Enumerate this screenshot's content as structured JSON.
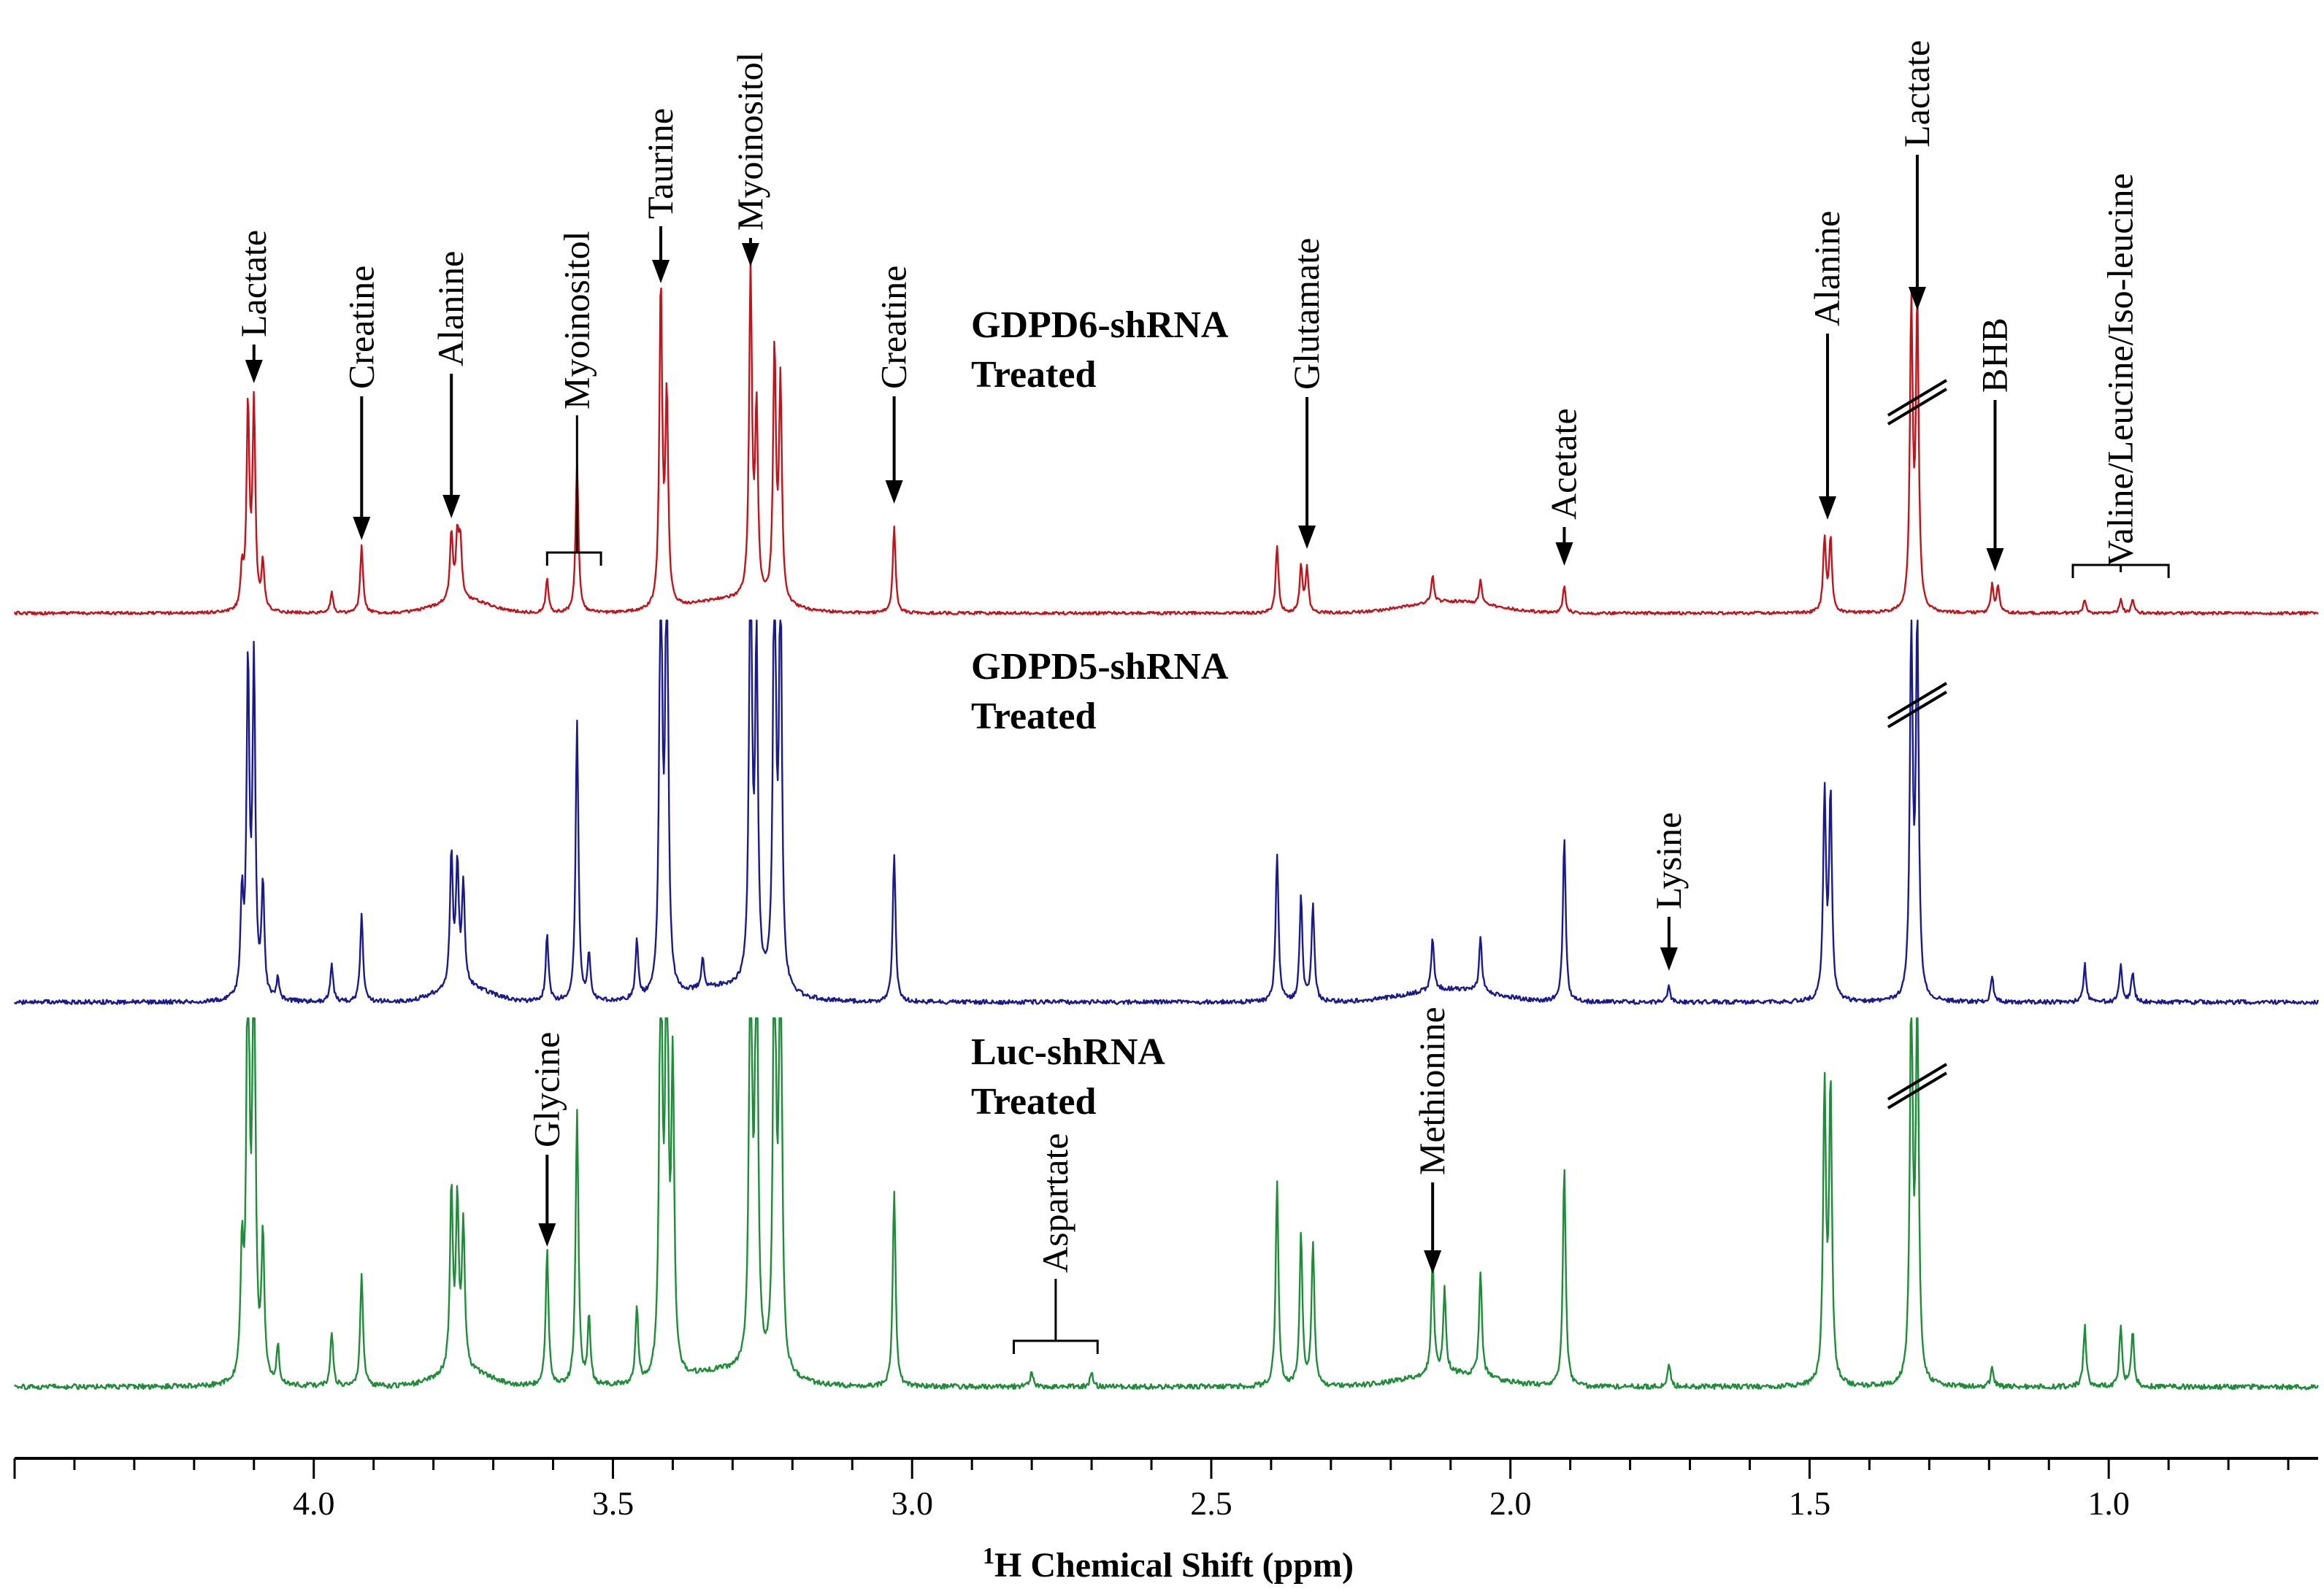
{
  "chart_data": {
    "type": "line",
    "title": "",
    "xlabel": "¹H Chemical Shift (ppm)",
    "xlabel_superscript": "1",
    "xlabel_text": "H Chemical Shift (ppm)",
    "ylabel": "",
    "x_reversed": true,
    "xlim": [
      4.5,
      0.65
    ],
    "x_ticks": [
      4.0,
      3.5,
      3.0,
      2.5,
      2.0,
      1.5,
      1.0
    ],
    "x_tick_labels": [
      "4.0",
      "3.5",
      "3.0",
      "2.5",
      "2.0",
      "1.5",
      "1.0"
    ],
    "series": [
      {
        "name": "GDPD6-shRNA",
        "label_line1": "GDPD6-shRNA",
        "label_line2": "Treated",
        "color": "#c0141c",
        "baseline": 0.0,
        "peaks": [
          {
            "ppm": 4.11,
            "height": 0.6
          },
          {
            "ppm": 4.1,
            "height": 0.61
          },
          {
            "ppm": 4.085,
            "height": 0.14
          },
          {
            "ppm": 4.12,
            "height": 0.12
          },
          {
            "ppm": 3.92,
            "height": 0.2
          },
          {
            "ppm": 3.97,
            "height": 0.06
          },
          {
            "ppm": 3.77,
            "height": 0.2
          },
          {
            "ppm": 3.76,
            "height": 0.18
          },
          {
            "ppm": 3.755,
            "height": 0.16
          },
          {
            "ppm": 3.56,
            "height": 0.45
          },
          {
            "ppm": 3.61,
            "height": 0.1
          },
          {
            "ppm": 3.42,
            "height": 0.96
          },
          {
            "ppm": 3.41,
            "height": 0.62
          },
          {
            "ppm": 3.27,
            "height": 0.98
          },
          {
            "ppm": 3.26,
            "height": 0.55
          },
          {
            "ppm": 3.23,
            "height": 0.75
          },
          {
            "ppm": 3.22,
            "height": 0.65
          },
          {
            "ppm": 3.03,
            "height": 0.26
          },
          {
            "ppm": 2.39,
            "height": 0.2
          },
          {
            "ppm": 2.35,
            "height": 0.14
          },
          {
            "ppm": 2.34,
            "height": 0.13
          },
          {
            "ppm": 2.13,
            "height": 0.08
          },
          {
            "ppm": 2.05,
            "height": 0.07
          },
          {
            "ppm": 1.91,
            "height": 0.08
          },
          {
            "ppm": 1.475,
            "height": 0.22
          },
          {
            "ppm": 1.465,
            "height": 0.22
          },
          {
            "ppm": 1.33,
            "height": 0.9
          },
          {
            "ppm": 1.32,
            "height": 0.9
          },
          {
            "ppm": 1.195,
            "height": 0.08
          },
          {
            "ppm": 1.185,
            "height": 0.08
          },
          {
            "ppm": 1.04,
            "height": 0.04
          },
          {
            "ppm": 0.98,
            "height": 0.04
          },
          {
            "ppm": 0.96,
            "height": 0.04
          }
        ]
      },
      {
        "name": "GDPD5-shRNA",
        "label_line1": "GDPD5-shRNA",
        "label_line2": "Treated",
        "color": "#1a1a8c",
        "baseline": 0.0,
        "peaks": [
          {
            "ppm": 4.11,
            "height": 0.88
          },
          {
            "ppm": 4.1,
            "height": 0.89
          },
          {
            "ppm": 4.085,
            "height": 0.3
          },
          {
            "ppm": 4.12,
            "height": 0.26
          },
          {
            "ppm": 4.06,
            "height": 0.06
          },
          {
            "ppm": 3.97,
            "height": 0.1
          },
          {
            "ppm": 3.92,
            "height": 0.24
          },
          {
            "ppm": 3.77,
            "height": 0.36
          },
          {
            "ppm": 3.76,
            "height": 0.32
          },
          {
            "ppm": 3.75,
            "height": 0.27
          },
          {
            "ppm": 3.61,
            "height": 0.18
          },
          {
            "ppm": 3.56,
            "height": 0.75
          },
          {
            "ppm": 3.54,
            "height": 0.12
          },
          {
            "ppm": 3.46,
            "height": 0.16
          },
          {
            "ppm": 3.42,
            "height": 1.25
          },
          {
            "ppm": 3.41,
            "height": 1.25
          },
          {
            "ppm": 3.35,
            "height": 0.08
          },
          {
            "ppm": 3.27,
            "height": 1.25
          },
          {
            "ppm": 3.26,
            "height": 0.9
          },
          {
            "ppm": 3.23,
            "height": 1.25
          },
          {
            "ppm": 3.22,
            "height": 1.1
          },
          {
            "ppm": 3.03,
            "height": 0.4
          },
          {
            "ppm": 2.39,
            "height": 0.4
          },
          {
            "ppm": 2.35,
            "height": 0.28
          },
          {
            "ppm": 2.33,
            "height": 0.26
          },
          {
            "ppm": 2.13,
            "height": 0.14
          },
          {
            "ppm": 2.05,
            "height": 0.15
          },
          {
            "ppm": 1.91,
            "height": 0.44
          },
          {
            "ppm": 1.735,
            "height": 0.04
          },
          {
            "ppm": 1.475,
            "height": 0.55
          },
          {
            "ppm": 1.465,
            "height": 0.55
          },
          {
            "ppm": 1.33,
            "height": 1.0
          },
          {
            "ppm": 1.32,
            "height": 1.0
          },
          {
            "ppm": 1.195,
            "height": 0.07
          },
          {
            "ppm": 1.04,
            "height": 0.1
          },
          {
            "ppm": 0.98,
            "height": 0.1
          },
          {
            "ppm": 0.96,
            "height": 0.08
          }
        ]
      },
      {
        "name": "Luc-shRNA",
        "label_line1": "Luc-shRNA",
        "label_line2": "Treated",
        "color": "#1f8c3a",
        "baseline": 0.0,
        "peaks": [
          {
            "ppm": 4.11,
            "height": 1.25
          },
          {
            "ppm": 4.1,
            "height": 1.25
          },
          {
            "ppm": 4.085,
            "height": 0.38
          },
          {
            "ppm": 4.12,
            "height": 0.32
          },
          {
            "ppm": 4.06,
            "height": 0.1
          },
          {
            "ppm": 3.97,
            "height": 0.14
          },
          {
            "ppm": 3.92,
            "height": 0.3
          },
          {
            "ppm": 3.77,
            "height": 0.48
          },
          {
            "ppm": 3.76,
            "height": 0.44
          },
          {
            "ppm": 3.75,
            "height": 0.38
          },
          {
            "ppm": 3.61,
            "height": 0.36
          },
          {
            "ppm": 3.56,
            "height": 0.72
          },
          {
            "ppm": 3.54,
            "height": 0.18
          },
          {
            "ppm": 3.46,
            "height": 0.2
          },
          {
            "ppm": 3.42,
            "height": 1.25
          },
          {
            "ppm": 3.41,
            "height": 1.25
          },
          {
            "ppm": 3.4,
            "height": 0.8
          },
          {
            "ppm": 3.27,
            "height": 1.25
          },
          {
            "ppm": 3.26,
            "height": 1.25
          },
          {
            "ppm": 3.23,
            "height": 1.25
          },
          {
            "ppm": 3.22,
            "height": 1.25
          },
          {
            "ppm": 3.03,
            "height": 0.52
          },
          {
            "ppm": 2.8,
            "height": 0.04
          },
          {
            "ppm": 2.7,
            "height": 0.04
          },
          {
            "ppm": 2.39,
            "height": 0.54
          },
          {
            "ppm": 2.35,
            "height": 0.4
          },
          {
            "ppm": 2.33,
            "height": 0.38
          },
          {
            "ppm": 2.13,
            "height": 0.3
          },
          {
            "ppm": 2.11,
            "height": 0.22
          },
          {
            "ppm": 2.05,
            "height": 0.28
          },
          {
            "ppm": 1.91,
            "height": 0.58
          },
          {
            "ppm": 1.735,
            "height": 0.06
          },
          {
            "ppm": 1.475,
            "height": 0.78
          },
          {
            "ppm": 1.465,
            "height": 0.78
          },
          {
            "ppm": 1.33,
            "height": 1.05
          },
          {
            "ppm": 1.32,
            "height": 1.05
          },
          {
            "ppm": 1.195,
            "height": 0.05
          },
          {
            "ppm": 1.04,
            "height": 0.16
          },
          {
            "ppm": 0.98,
            "height": 0.16
          },
          {
            "ppm": 0.96,
            "height": 0.14
          }
        ]
      }
    ],
    "annotations": [
      {
        "id": "lactate-1",
        "text": "Lactate",
        "ppm": 4.1,
        "series": "GDPD6-shRNA",
        "style": "arrow"
      },
      {
        "id": "creatine-1",
        "text": "Creatine",
        "ppm": 3.92,
        "series": "GDPD6-shRNA",
        "style": "arrow"
      },
      {
        "id": "alanine-1",
        "text": "Alanine",
        "ppm": 3.77,
        "series": "GDPD6-shRNA",
        "style": "arrow"
      },
      {
        "id": "myoinositol-1",
        "text": "Myoinositol",
        "ppm": 3.56,
        "series": "GDPD6-shRNA",
        "style": "bracket",
        "ppm_range": [
          3.61,
          3.52
        ]
      },
      {
        "id": "taurine",
        "text": "Taurine",
        "ppm": 3.42,
        "series": "GDPD6-shRNA",
        "style": "arrow"
      },
      {
        "id": "myoinositol-2",
        "text": "Myoinositol",
        "ppm": 3.27,
        "series": "GDPD6-shRNA",
        "style": "arrow"
      },
      {
        "id": "creatine-2",
        "text": "Creatine",
        "ppm": 3.03,
        "series": "GDPD6-shRNA",
        "style": "arrow"
      },
      {
        "id": "glutamate",
        "text": "Glutamate",
        "ppm": 2.34,
        "series": "GDPD6-shRNA",
        "style": "arrow"
      },
      {
        "id": "acetate",
        "text": "Acetate",
        "ppm": 1.91,
        "series": "GDPD6-shRNA",
        "style": "arrow"
      },
      {
        "id": "alanine-2",
        "text": "Alanine",
        "ppm": 1.47,
        "series": "GDPD6-shRNA",
        "style": "arrow"
      },
      {
        "id": "lactate-2",
        "text": "Lactate",
        "ppm": 1.32,
        "series": "GDPD6-shRNA",
        "style": "arrow"
      },
      {
        "id": "bhb",
        "text": "BHB",
        "ppm": 1.19,
        "series": "GDPD6-shRNA",
        "style": "arrow"
      },
      {
        "id": "valine",
        "text": "Valine/Leucine/Iso-leucine",
        "ppm": 0.98,
        "series": "GDPD6-shRNA",
        "style": "bracket",
        "ppm_range": [
          1.06,
          0.9
        ]
      },
      {
        "id": "lysine",
        "text": "Lysine",
        "ppm": 1.735,
        "series": "GDPD5-shRNA",
        "style": "arrow"
      },
      {
        "id": "glycine",
        "text": "Glycine",
        "ppm": 3.61,
        "series": "Luc-shRNA",
        "style": "arrow"
      },
      {
        "id": "aspartate",
        "text": "Aspartate",
        "ppm": 2.76,
        "series": "Luc-shRNA",
        "style": "bracket",
        "ppm_range": [
          2.83,
          2.69
        ]
      },
      {
        "id": "methionine",
        "text": "Methionine",
        "ppm": 2.13,
        "series": "Luc-shRNA",
        "style": "arrow"
      }
    ],
    "axis_breaks_ppm": 1.32
  }
}
